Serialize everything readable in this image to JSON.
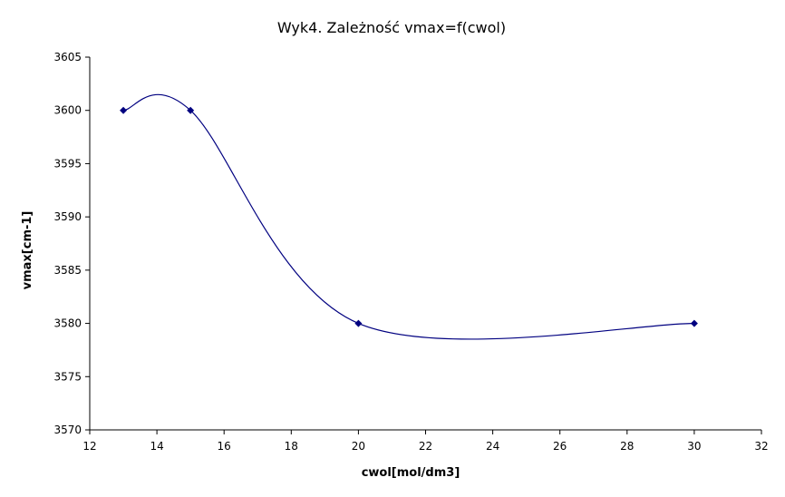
{
  "chart_data": {
    "type": "scatter",
    "title": "Wyk4. Zależność vmax=f(cwol)",
    "xlabel": "cwol[mol/dm3]",
    "ylabel": "vmax[cm-1]",
    "xlim": [
      12,
      32
    ],
    "ylim": [
      3570,
      3605
    ],
    "xticks": [
      12,
      14,
      16,
      18,
      20,
      22,
      24,
      26,
      28,
      30,
      32
    ],
    "yticks": [
      3570,
      3575,
      3580,
      3585,
      3590,
      3595,
      3600,
      3605
    ],
    "grid": false,
    "legend": "none",
    "smooth_line": true,
    "series": [
      {
        "points": [
          {
            "x": 13,
            "y": 3600
          },
          {
            "x": 15,
            "y": 3600
          },
          {
            "x": 20,
            "y": 3580
          },
          {
            "x": 30,
            "y": 3580
          }
        ],
        "color": "#000080"
      }
    ]
  }
}
